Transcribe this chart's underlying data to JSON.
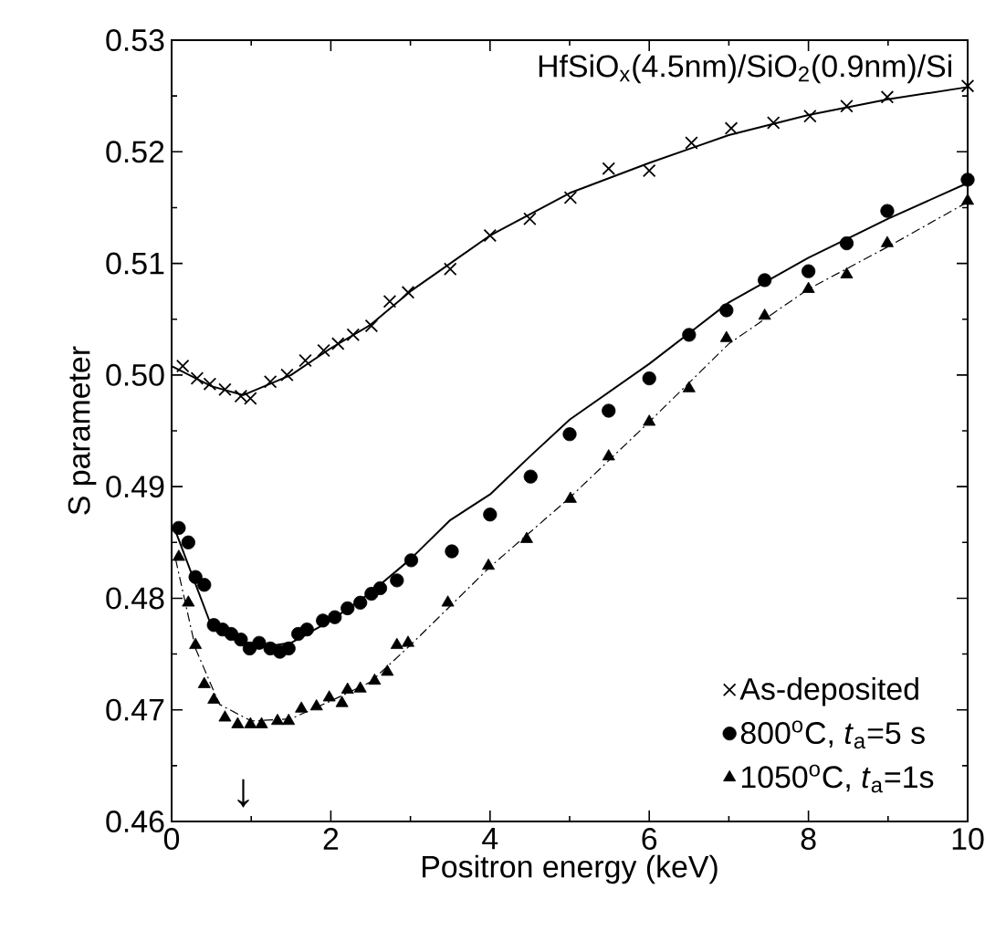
{
  "chart_data": {
    "type": "scatter",
    "xlabel": "Positron energy (keV)",
    "ylabel": "S parameter",
    "annotations": [
      "HfSiO$_{x}$(4.5nm)/SiO$_{2}$(0.9nm)/Si",
      "↓"
    ],
    "xlim": [
      0,
      10
    ],
    "ylim": [
      0.46,
      0.53
    ],
    "xticks": [
      0,
      2,
      4,
      6,
      8,
      10
    ],
    "yticks": [
      0.46,
      0.47,
      0.48,
      0.49,
      {
        "value": 0.5,
        "label": "0.50"
      },
      0.51,
      0.52,
      0.53
    ],
    "grid": false,
    "legend": "bottom right",
    "series": [
      {
        "name": "As-deposited",
        "marker": "cross",
        "color": "#000000",
        "x": [
          0.14,
          0.32,
          0.48,
          0.67,
          0.87,
          0.99,
          1.24,
          1.45,
          1.68,
          1.91,
          2.09,
          2.28,
          2.51,
          2.74,
          2.97,
          3.5,
          4.0,
          4.5,
          5.01,
          5.49,
          6.0,
          6.53,
          7.03,
          7.56,
          8.02,
          8.48,
          8.99,
          10.0
        ],
        "values": [
          0.5008,
          0.4997,
          0.4992,
          0.4987,
          0.4981,
          0.4979,
          0.4994,
          0.5,
          0.5013,
          0.5022,
          0.5028,
          0.5036,
          0.5044,
          0.5066,
          0.5074,
          0.5095,
          0.5125,
          0.514,
          0.5159,
          0.5185,
          0.5183,
          0.5208,
          0.5221,
          0.5226,
          0.5232,
          0.5241,
          0.5249,
          0.5259
        ]
      },
      {
        "name": "800$^{o}$C, *t*$_{a}$=5 s",
        "marker": "circle",
        "color": "#000000",
        "x": [
          0.09,
          0.21,
          0.3,
          0.41,
          0.53,
          0.64,
          0.75,
          0.87,
          0.98,
          1.1,
          1.24,
          1.36,
          1.47,
          1.59,
          1.7,
          1.9,
          2.05,
          2.21,
          2.37,
          2.51,
          2.62,
          2.83,
          3.01,
          3.52,
          4.0,
          4.51,
          5.0,
          5.49,
          6.0,
          6.5,
          6.97,
          7.45,
          8.0,
          8.48,
          8.99,
          10.0
        ],
        "values": [
          0.4863,
          0.485,
          0.4819,
          0.4812,
          0.4776,
          0.4772,
          0.4768,
          0.4763,
          0.4755,
          0.476,
          0.4755,
          0.4752,
          0.4755,
          0.4768,
          0.4772,
          0.478,
          0.4783,
          0.4791,
          0.4796,
          0.4804,
          0.4809,
          0.4816,
          0.4834,
          0.4842,
          0.4875,
          0.4909,
          0.4947,
          0.4968,
          0.4997,
          0.5036,
          0.5058,
          0.5085,
          0.5093,
          0.5118,
          0.5147,
          0.5175
        ]
      },
      {
        "name": "1050$^{o}$C, *t*$_{a}$=1s",
        "marker": "triangle",
        "color": "#000000",
        "x": [
          0.09,
          0.21,
          0.3,
          0.41,
          0.53,
          0.67,
          0.83,
          0.99,
          1.13,
          1.33,
          1.47,
          1.63,
          1.82,
          1.98,
          2.14,
          2.21,
          2.37,
          2.55,
          2.71,
          2.83,
          2.97,
          3.47,
          3.98,
          4.46,
          5.01,
          5.49,
          6.0,
          6.5,
          6.97,
          7.45,
          8.0,
          8.48,
          8.99,
          10.0
        ],
        "values": [
          0.4837,
          0.4796,
          0.4758,
          0.4723,
          0.4709,
          0.4693,
          0.4687,
          0.4687,
          0.4687,
          0.469,
          0.469,
          0.4701,
          0.4703,
          0.4711,
          0.4706,
          0.4718,
          0.4719,
          0.4726,
          0.4734,
          0.4758,
          0.476,
          0.4796,
          0.4829,
          0.4853,
          0.4889,
          0.4927,
          0.4958,
          0.4988,
          0.5033,
          0.5053,
          0.5077,
          0.509,
          0.5118,
          0.5156
        ]
      },
      {
        "type": "line",
        "marker": "none",
        "line_style": "solid",
        "color": "#000000",
        "x": [
          0,
          0.5,
          0.9,
          1.5,
          2,
          2.5,
          3,
          3.5,
          4,
          5,
          6,
          7,
          8,
          9,
          10
        ],
        "values": [
          0.5008,
          0.499,
          0.4982,
          0.5,
          0.5024,
          0.5045,
          0.5075,
          0.51,
          0.5125,
          0.5163,
          0.519,
          0.5215,
          0.5233,
          0.5247,
          0.5258
        ]
      },
      {
        "type": "line",
        "marker": "none",
        "line_style": "solid",
        "color": "#000000",
        "x": [
          0.05,
          0.5,
          1,
          1.5,
          2,
          2.5,
          3,
          3.5,
          4,
          4.5,
          5,
          6,
          7,
          8,
          9,
          10
        ],
        "values": [
          0.486,
          0.4775,
          0.4755,
          0.476,
          0.478,
          0.4805,
          0.4835,
          0.487,
          0.4893,
          0.4927,
          0.496,
          0.501,
          0.5065,
          0.5105,
          0.514,
          0.5172
        ]
      },
      {
        "type": "line",
        "marker": "none",
        "line_style": "dashed",
        "color": "#000000",
        "x": [
          0.05,
          0.3,
          0.6,
          1,
          1.5,
          2,
          2.5,
          3,
          4,
          5,
          6,
          7,
          8,
          9,
          10
        ],
        "values": [
          0.4835,
          0.4755,
          0.4705,
          0.469,
          0.4692,
          0.4708,
          0.4725,
          0.4758,
          0.4828,
          0.489,
          0.4958,
          0.5028,
          0.5077,
          0.5115,
          0.5155
        ]
      }
    ]
  }
}
